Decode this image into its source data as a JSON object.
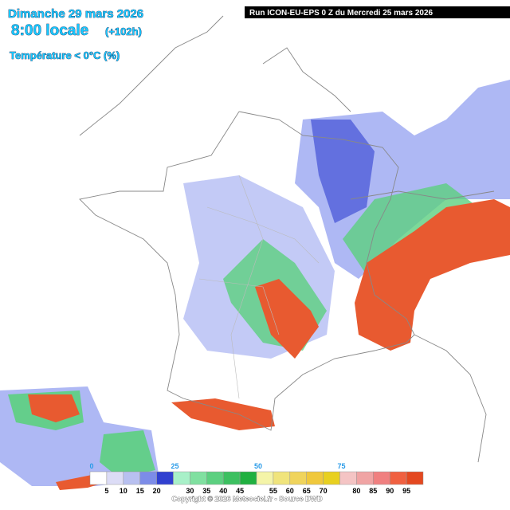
{
  "header": {
    "date": "Dimanche 29 mars 2026",
    "time": "8:00 locale",
    "lead": "(+102h)",
    "parameter": "Température < 0°C (%)",
    "run": "Run ICON-EU-EPS 0 Z du Mercredi 25 mars 2026"
  },
  "legend": {
    "ticks": [
      0,
      25,
      50,
      75
    ],
    "minor_ticks": [
      5,
      10,
      15,
      20,
      30,
      35,
      40,
      45,
      55,
      60,
      65,
      70,
      80,
      85,
      90,
      95
    ],
    "colors": [
      "#ffffff",
      "#dcdcf6",
      "#b8c0f0",
      "#7c8ce8",
      "#3040d0",
      "#a8f0c8",
      "#80e0a0",
      "#5cd080",
      "#3cc060",
      "#20b040",
      "#f4f4a8",
      "#f0e47c",
      "#f0d45c",
      "#f0c83c",
      "#e8d020",
      "#f4c4c4",
      "#f0a4a4",
      "#f08080",
      "#f06040",
      "#e44820"
    ]
  },
  "footer": {
    "copyright": "Copyright © 2026 Meteociel.fr - Source DWD"
  }
}
